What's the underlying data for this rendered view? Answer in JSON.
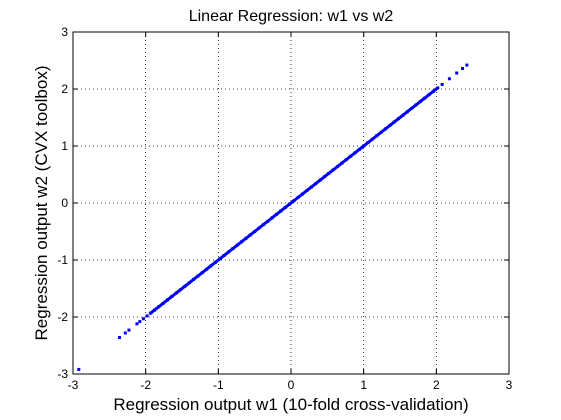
{
  "chart_data": {
    "type": "scatter",
    "title": "Linear Regression: w1 vs w2",
    "xlabel": "Regression output w1 (10-fold cross-validation)",
    "ylabel": "Regression output w2 (CVX toolbox)",
    "xlim": [
      -3,
      3
    ],
    "ylim": [
      -3,
      3
    ],
    "xticks": [
      -3,
      -2,
      -1,
      0,
      1,
      2,
      3
    ],
    "yticks": [
      -3,
      -2,
      -1,
      0,
      1,
      2,
      3
    ],
    "xtick_labels": [
      "-3",
      "-2",
      "-1",
      "0",
      "1",
      "2",
      "3"
    ],
    "ytick_labels": [
      "-3",
      "-2",
      "-1",
      "0",
      "1",
      "2",
      "3"
    ],
    "grid": true,
    "grid_style": "dotted",
    "legend": "none",
    "marker_color": "#0000ff",
    "series": [
      {
        "x": [
          -2.92,
          -2.36,
          -2.28,
          -2.23,
          -2.12,
          -2.08,
          -2.03,
          -1.98,
          -1.93,
          -1.88,
          -1.82,
          -1.76,
          -1.7,
          -1.64,
          -1.58,
          -1.52,
          -1.46,
          -1.4,
          -1.34,
          -1.28,
          -1.22,
          -1.16,
          -1.1,
          -1.04,
          -0.98,
          -0.92,
          -0.86,
          -0.8,
          -0.74,
          -0.68,
          -0.62,
          -0.56,
          -0.5,
          -0.44,
          -0.38,
          -0.32,
          -0.26,
          -0.2,
          -0.14,
          -0.08,
          -0.02,
          0.04,
          0.1,
          0.16,
          0.22,
          0.28,
          0.34,
          0.4,
          0.46,
          0.52,
          0.58,
          0.64,
          0.7,
          0.76,
          0.82,
          0.88,
          0.94,
          1.0,
          1.06,
          1.12,
          1.18,
          1.24,
          1.3,
          1.36,
          1.42,
          1.48,
          1.54,
          1.6,
          1.66,
          1.72,
          1.78,
          1.84,
          1.9,
          1.96,
          2.02,
          2.08,
          2.18,
          2.28,
          2.36,
          2.42
        ],
        "y": [
          -2.92,
          -2.36,
          -2.28,
          -2.23,
          -2.12,
          -2.08,
          -2.03,
          -1.98,
          -1.93,
          -1.88,
          -1.82,
          -1.76,
          -1.7,
          -1.64,
          -1.58,
          -1.52,
          -1.46,
          -1.4,
          -1.34,
          -1.28,
          -1.22,
          -1.16,
          -1.1,
          -1.04,
          -0.98,
          -0.92,
          -0.86,
          -0.8,
          -0.74,
          -0.68,
          -0.62,
          -0.56,
          -0.5,
          -0.44,
          -0.38,
          -0.32,
          -0.26,
          -0.2,
          -0.14,
          -0.08,
          -0.02,
          0.04,
          0.1,
          0.16,
          0.22,
          0.28,
          0.34,
          0.4,
          0.46,
          0.52,
          0.58,
          0.64,
          0.7,
          0.76,
          0.82,
          0.88,
          0.94,
          1.0,
          1.06,
          1.12,
          1.18,
          1.24,
          1.3,
          1.36,
          1.42,
          1.48,
          1.54,
          1.6,
          1.66,
          1.72,
          1.78,
          1.84,
          1.9,
          1.96,
          2.02,
          2.08,
          2.18,
          2.28,
          2.36,
          2.42
        ]
      }
    ]
  }
}
